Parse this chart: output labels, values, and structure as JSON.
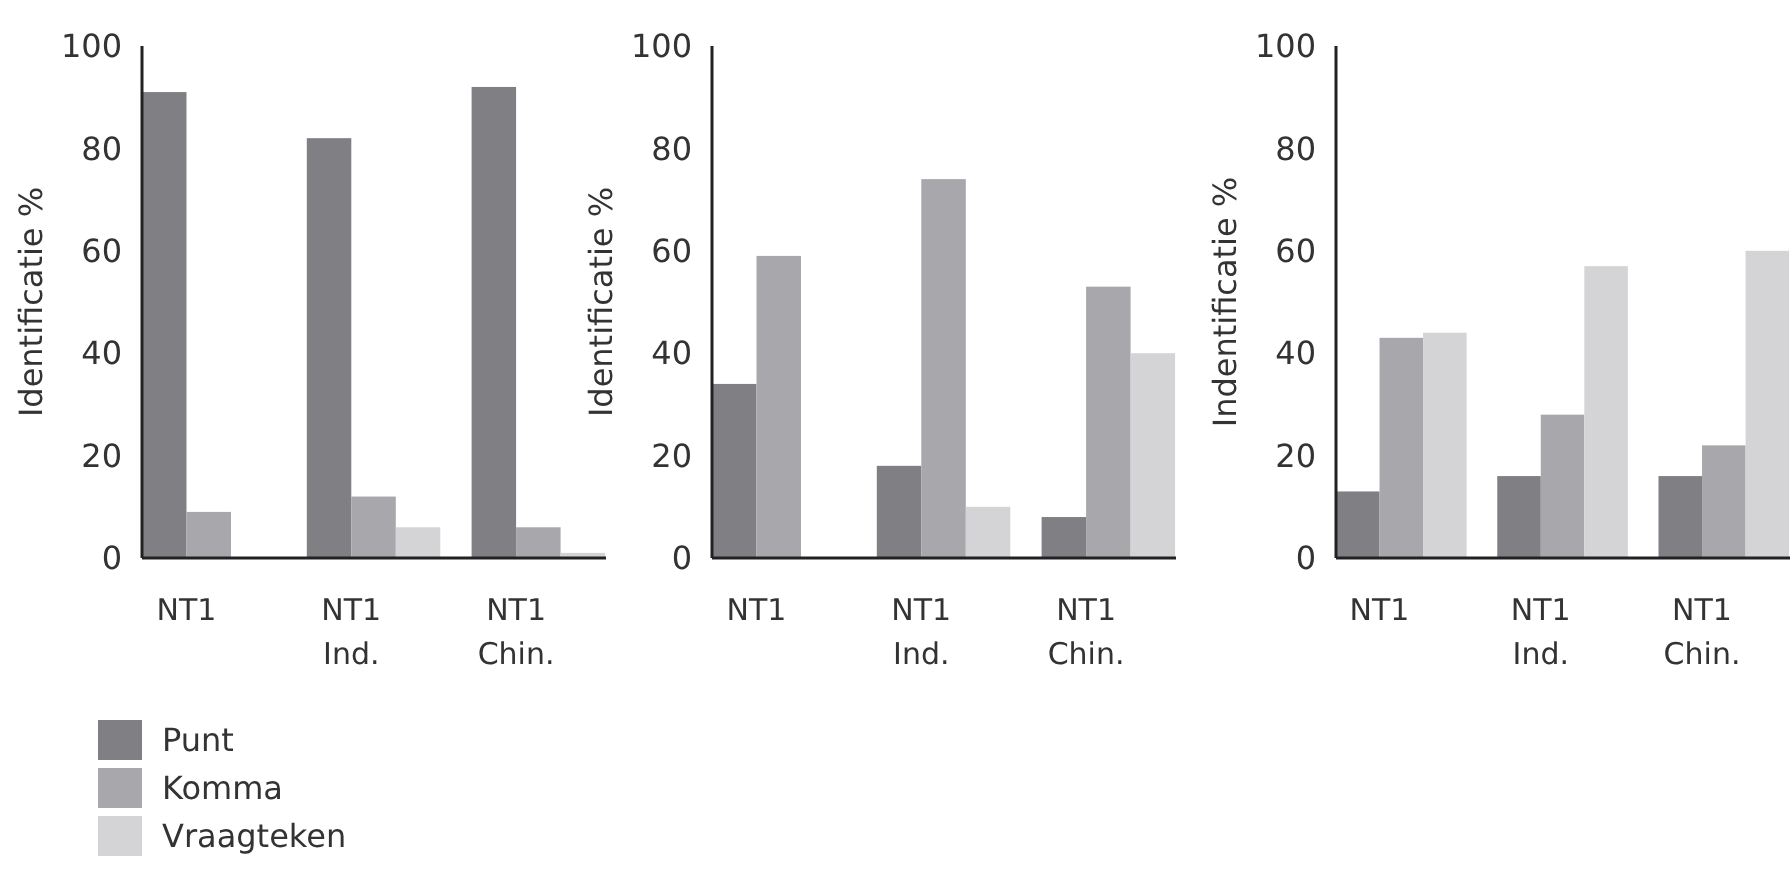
{
  "chart_data": [
    {
      "type": "bar",
      "ylabel": "Identificatie %",
      "categories": [
        "NT1",
        "NT1\nInd.",
        "NT1\nChin."
      ],
      "ylim": [
        0,
        100
      ],
      "yticks": [
        0,
        20,
        40,
        60,
        80,
        100
      ],
      "legend": "bottom",
      "series": [
        {
          "name": "Punt",
          "color": "#808084",
          "values": [
            91,
            82,
            92
          ]
        },
        {
          "name": "Komma",
          "color": "#a8a8ac",
          "values": [
            9,
            12,
            6
          ]
        },
        {
          "name": "Vraagteken",
          "color": "#d4d4d6",
          "values": [
            0,
            6,
            1
          ]
        }
      ]
    },
    {
      "type": "bar",
      "ylabel": "Identificatie %",
      "categories": [
        "NT1",
        "NT1\nInd.",
        "NT1\nChin."
      ],
      "ylim": [
        0,
        100
      ],
      "yticks": [
        0,
        20,
        40,
        60,
        80,
        100
      ],
      "legend": false,
      "series": [
        {
          "color": "#808084",
          "values": [
            34,
            18,
            8
          ]
        },
        {
          "color": "#a8a8ac",
          "values": [
            59,
            74,
            53
          ]
        },
        {
          "color": "#d4d4d6",
          "values": [
            0,
            10,
            40
          ]
        }
      ]
    },
    {
      "type": "bar",
      "ylabel": "Indentificatie %",
      "categories": [
        "NT1",
        "NT1\nInd.",
        "NT1\nChin."
      ],
      "ylim": [
        0,
        100
      ],
      "yticks": [
        0,
        20,
        40,
        60,
        80,
        100
      ],
      "legend": false,
      "series": [
        {
          "color": "#808084",
          "values": [
            13,
            16,
            16
          ]
        },
        {
          "color": "#a8a8ac",
          "values": [
            43,
            28,
            22
          ]
        },
        {
          "color": "#d4d4d6",
          "values": [
            44,
            57,
            60
          ]
        }
      ]
    }
  ]
}
